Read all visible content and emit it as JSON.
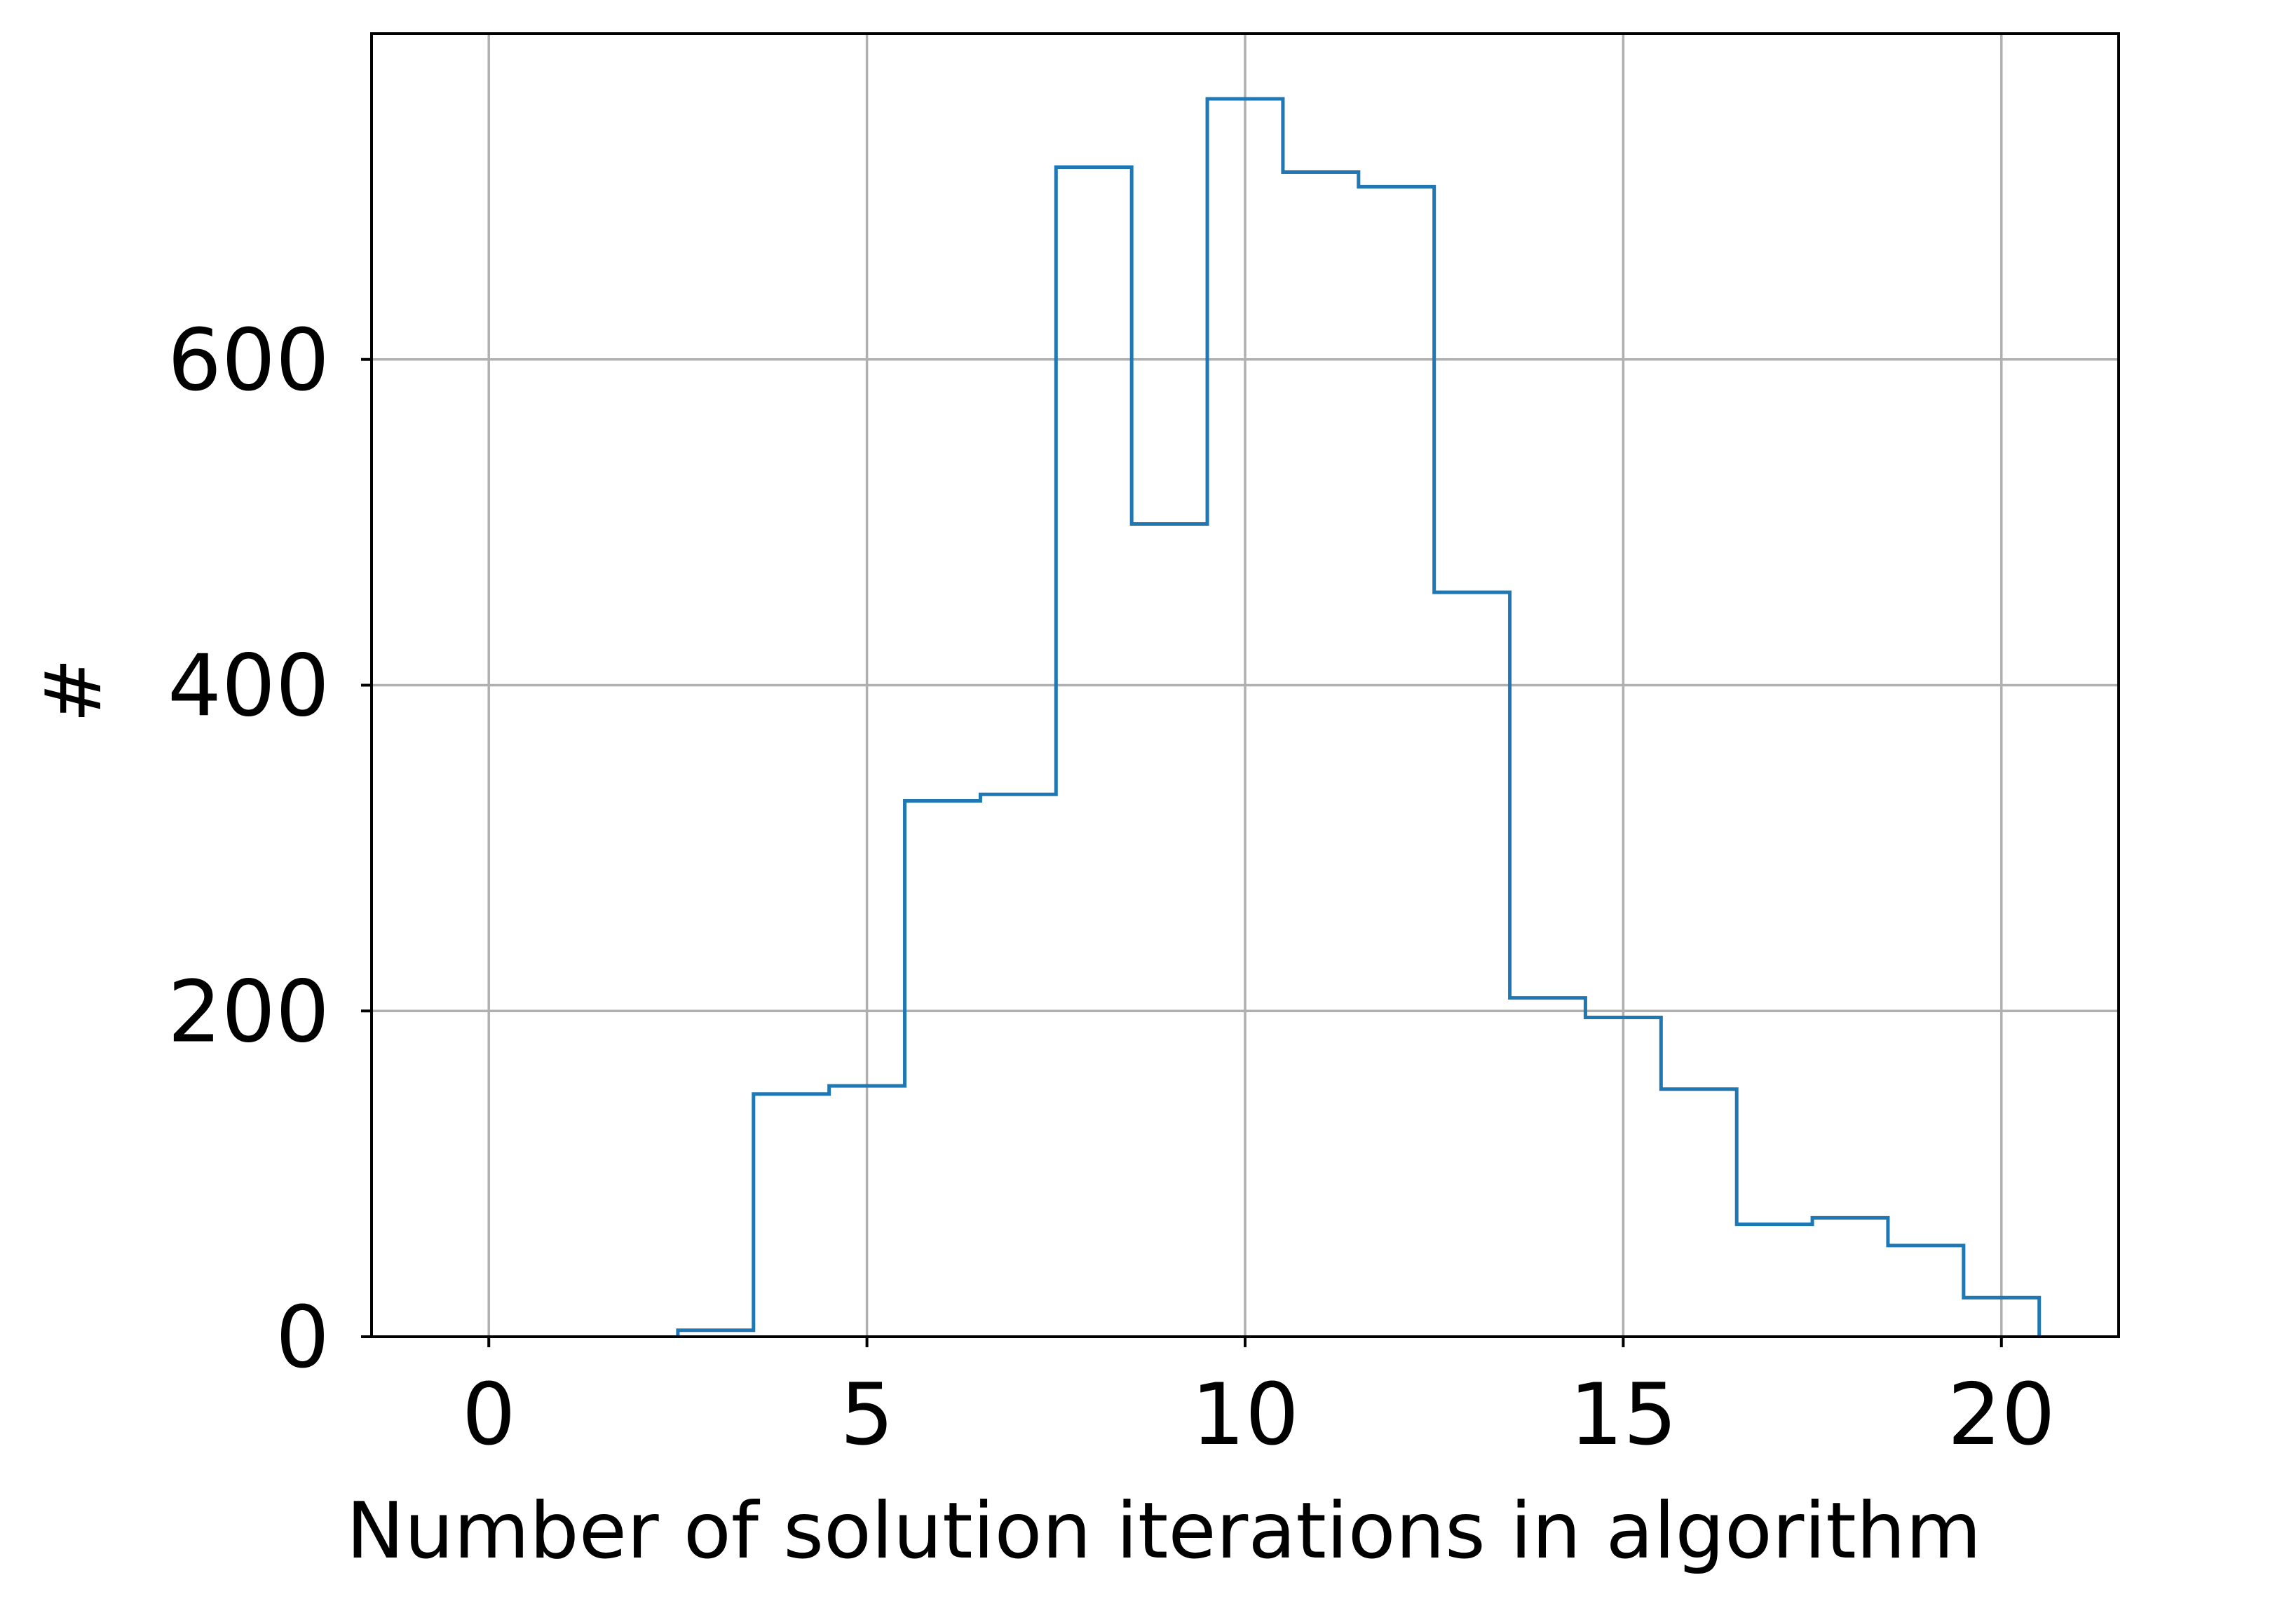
{
  "chart_data": {
    "type": "step-histogram",
    "title": "",
    "xlabel": "Number of solution iterations in algorithm",
    "ylabel": "#",
    "xlim": [
      -1.55,
      21.55
    ],
    "ylim": [
      0,
      800
    ],
    "x_ticks": [
      0,
      5,
      10,
      15,
      20
    ],
    "y_ticks": [
      0,
      200,
      400,
      600
    ],
    "grid": true,
    "legend": "none",
    "bins": [
      {
        "x": 0,
        "count": 0
      },
      {
        "x": 1,
        "count": 0
      },
      {
        "x": 2,
        "count": 0
      },
      {
        "x": 3,
        "count": 4
      },
      {
        "x": 4,
        "count": 149
      },
      {
        "x": 5,
        "count": 154
      },
      {
        "x": 6,
        "count": 329
      },
      {
        "x": 7,
        "count": 333
      },
      {
        "x": 8,
        "count": 718
      },
      {
        "x": 9,
        "count": 499
      },
      {
        "x": 10,
        "count": 760
      },
      {
        "x": 11,
        "count": 715
      },
      {
        "x": 12,
        "count": 706
      },
      {
        "x": 13,
        "count": 457
      },
      {
        "x": 14,
        "count": 208
      },
      {
        "x": 15,
        "count": 196
      },
      {
        "x": 16,
        "count": 152
      },
      {
        "x": 17,
        "count": 69
      },
      {
        "x": 18,
        "count": 73
      },
      {
        "x": 19,
        "count": 56
      },
      {
        "x": 20,
        "count": 24
      }
    ],
    "colors": {
      "line": "#1f77b4",
      "grid": "#b0b0b0",
      "axes": "#000000"
    }
  }
}
